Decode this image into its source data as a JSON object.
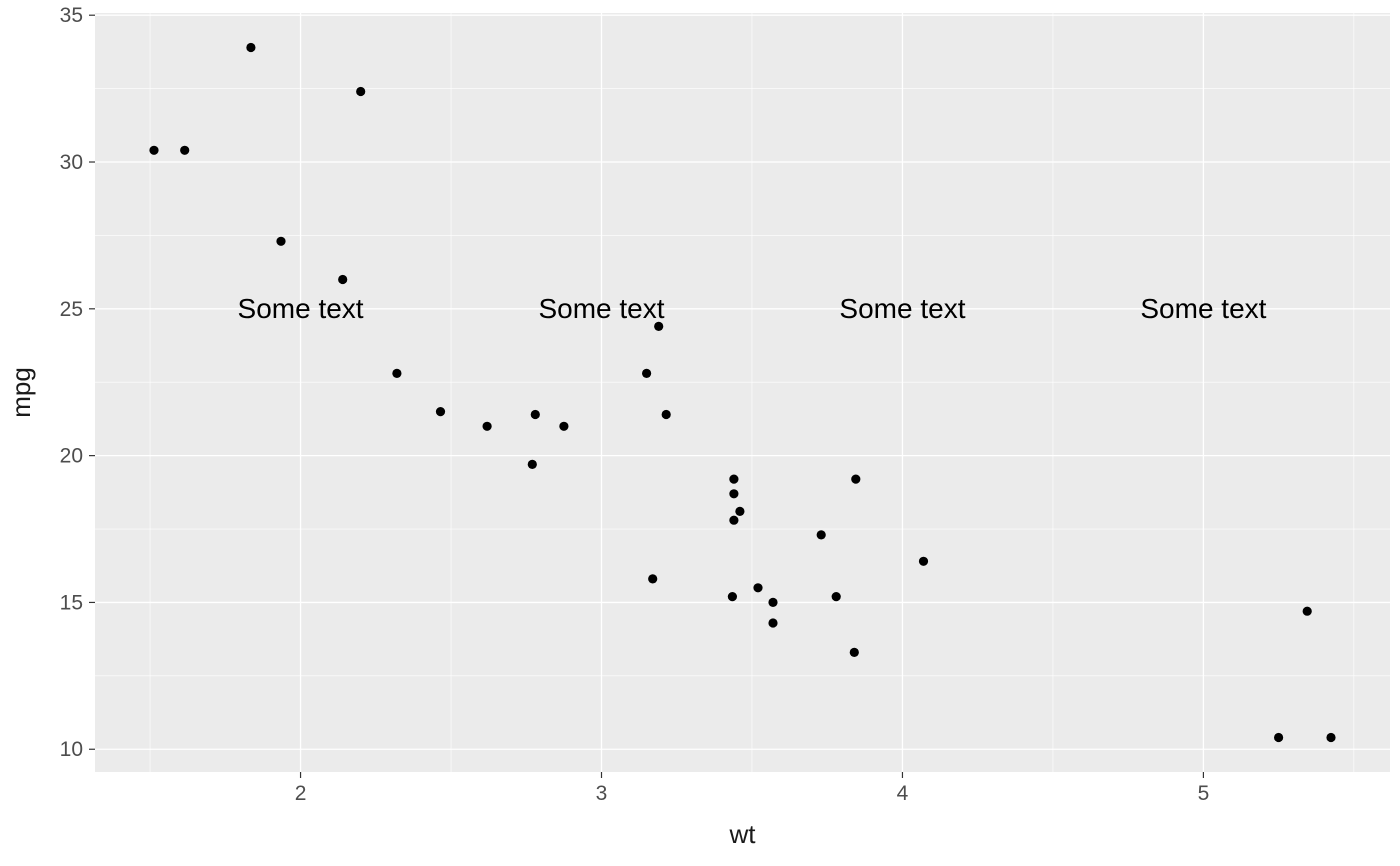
{
  "chart_data": {
    "type": "scatter",
    "title": "",
    "xlabel": "wt",
    "ylabel": "mpg",
    "xlim": [
      1.317,
      5.62
    ],
    "ylim": [
      9.225,
      35.075
    ],
    "x_ticks": [
      2,
      3,
      4,
      5
    ],
    "y_ticks": [
      10,
      15,
      20,
      25,
      30,
      35
    ],
    "x_minor": [
      1.5,
      2.5,
      3.5,
      4.5,
      5.5
    ],
    "y_minor": [
      12.5,
      17.5,
      22.5,
      27.5,
      32.5
    ],
    "grid": true,
    "legend_position": "none",
    "points": [
      [
        2.62,
        21.0
      ],
      [
        2.875,
        21.0
      ],
      [
        2.32,
        22.8
      ],
      [
        3.215,
        21.4
      ],
      [
        3.44,
        18.7
      ],
      [
        3.46,
        18.1
      ],
      [
        3.57,
        14.3
      ],
      [
        3.19,
        24.4
      ],
      [
        3.15,
        22.8
      ],
      [
        3.44,
        19.2
      ],
      [
        3.44,
        17.8
      ],
      [
        4.07,
        16.4
      ],
      [
        3.73,
        17.3
      ],
      [
        3.78,
        15.2
      ],
      [
        5.25,
        10.4
      ],
      [
        5.424,
        10.4
      ],
      [
        5.345,
        14.7
      ],
      [
        2.2,
        32.4
      ],
      [
        1.615,
        30.4
      ],
      [
        1.835,
        33.9
      ],
      [
        2.465,
        21.5
      ],
      [
        3.52,
        15.5
      ],
      [
        3.435,
        15.2
      ],
      [
        3.84,
        13.3
      ],
      [
        3.845,
        19.2
      ],
      [
        1.935,
        27.3
      ],
      [
        2.14,
        26.0
      ],
      [
        1.513,
        30.4
      ],
      [
        3.17,
        15.8
      ],
      [
        2.77,
        19.7
      ],
      [
        3.57,
        15.0
      ],
      [
        2.78,
        21.4
      ]
    ],
    "annotations": [
      {
        "text": "Some text",
        "x": 2,
        "y": 25
      },
      {
        "text": "Some text",
        "x": 3,
        "y": 25
      },
      {
        "text": "Some text",
        "x": 4,
        "y": 25
      },
      {
        "text": "Some text",
        "x": 5,
        "y": 25
      }
    ],
    "colors": {
      "panel_bg": "#EBEBEB",
      "grid_major": "#FFFFFF",
      "grid_minor": "#FFFFFF",
      "point": "#000000",
      "axis_text": "#4D4D4D",
      "axis_title": "#1A1A1A",
      "annotation": "#000000",
      "tick_mark": "#333333",
      "outer_bg": "#FFFFFF"
    }
  }
}
